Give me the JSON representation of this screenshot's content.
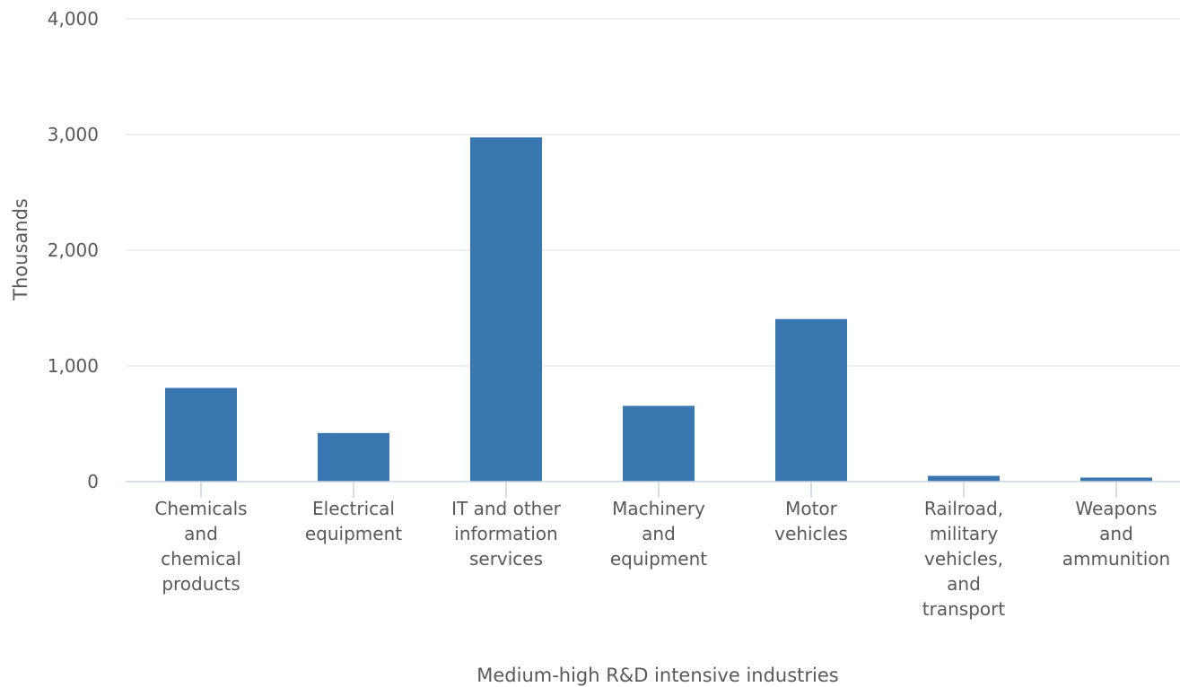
{
  "chart_data": {
    "type": "bar",
    "title": "",
    "xlabel": "Medium-high R&D intensive industries",
    "ylabel": "Thousands",
    "ylim": [
      0,
      4000
    ],
    "yticks": [
      "0",
      "1,000",
      "2,000",
      "3,000",
      "4,000"
    ],
    "ytick_values": [
      0,
      1000,
      2000,
      3000,
      4000
    ],
    "grid": true,
    "legend": "none",
    "categories": [
      [
        "Chemicals",
        "and",
        "chemical",
        "products"
      ],
      [
        "Electrical",
        "equipment"
      ],
      [
        "IT and other",
        "information",
        "services"
      ],
      [
        "Machinery",
        "and",
        "equipment"
      ],
      [
        "Motor",
        "vehicles"
      ],
      [
        "Railroad,",
        "military",
        "vehicles,",
        "and",
        "transport"
      ],
      [
        "Weapons",
        "and",
        "ammunition"
      ]
    ],
    "values": [
      810,
      420,
      2975,
      655,
      1405,
      50,
      35
    ],
    "colors": {
      "bar": "#3a76b0",
      "grid": "#e3e3e3",
      "axis": "#c9d3df",
      "text": "#595959"
    }
  }
}
